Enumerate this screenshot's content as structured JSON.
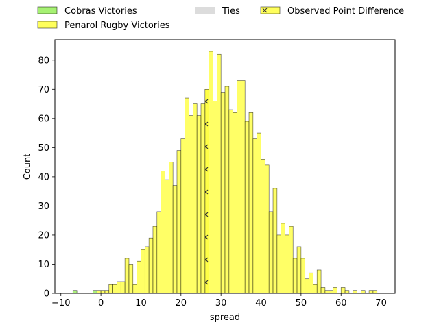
{
  "chart_data": {
    "type": "bar",
    "xlabel": "spread",
    "ylabel": "Count",
    "xlim": [
      -11.5,
      73.5
    ],
    "ylim": [
      0,
      87
    ],
    "x_ticks": [
      -10,
      0,
      10,
      20,
      30,
      40,
      50,
      60,
      70
    ],
    "x_tick_labels": [
      "−10",
      "0",
      "10",
      "20",
      "30",
      "40",
      "50",
      "60",
      "70"
    ],
    "y_ticks": [
      0,
      10,
      20,
      30,
      40,
      50,
      60,
      70,
      80
    ],
    "y_tick_labels": [
      "0",
      "10",
      "20",
      "30",
      "40",
      "50",
      "60",
      "70",
      "80"
    ],
    "bin_width": 1,
    "legend": {
      "placement": "top",
      "entries": [
        {
          "label": "Cobras Victories",
          "color": "#90ee50"
        },
        {
          "label": "Ties",
          "color": "#d3d3d3"
        },
        {
          "label": "Observed Point Difference",
          "color": "#ffff33",
          "hatch": "x"
        },
        {
          "label": "Penarol Rugby Victories",
          "color": "#ffff33"
        }
      ]
    },
    "series": [
      {
        "name": "Cobras Victories",
        "color": "#90ee50",
        "bins": [
          [
            -7,
            1
          ],
          [
            -2,
            1
          ]
        ]
      },
      {
        "name": "Ties",
        "color": "#d3d3d3",
        "bins": []
      },
      {
        "name": "Observed Point Difference",
        "color": "#ffff33",
        "hatch": "x",
        "bins": [
          [
            26,
            70
          ]
        ]
      },
      {
        "name": "Penarol Rugby Victories",
        "color": "#ffff33",
        "bins": [
          [
            -1,
            1
          ],
          [
            0,
            1
          ],
          [
            1,
            1
          ],
          [
            2,
            3
          ],
          [
            3,
            3
          ],
          [
            4,
            4
          ],
          [
            5,
            4
          ],
          [
            6,
            12
          ],
          [
            7,
            10
          ],
          [
            8,
            3
          ],
          [
            9,
            11
          ],
          [
            10,
            15
          ],
          [
            11,
            16
          ],
          [
            12,
            19
          ],
          [
            13,
            23
          ],
          [
            14,
            28
          ],
          [
            15,
            42
          ],
          [
            16,
            39
          ],
          [
            17,
            45
          ],
          [
            18,
            37
          ],
          [
            19,
            49
          ],
          [
            20,
            53
          ],
          [
            21,
            67
          ],
          [
            22,
            61
          ],
          [
            23,
            65
          ],
          [
            24,
            61
          ],
          [
            25,
            65
          ],
          [
            27,
            83
          ],
          [
            28,
            66
          ],
          [
            29,
            82
          ],
          [
            30,
            69
          ],
          [
            31,
            71
          ],
          [
            32,
            63
          ],
          [
            33,
            62
          ],
          [
            34,
            73
          ],
          [
            35,
            73
          ],
          [
            36,
            59
          ],
          [
            37,
            62
          ],
          [
            38,
            53
          ],
          [
            39,
            55
          ],
          [
            40,
            46
          ],
          [
            41,
            44
          ],
          [
            42,
            28
          ],
          [
            43,
            36
          ],
          [
            44,
            20
          ],
          [
            45,
            24
          ],
          [
            46,
            20
          ],
          [
            47,
            23
          ],
          [
            48,
            12
          ],
          [
            49,
            16
          ],
          [
            50,
            12
          ],
          [
            51,
            5
          ],
          [
            52,
            7
          ],
          [
            53,
            3
          ],
          [
            54,
            8
          ],
          [
            55,
            2
          ],
          [
            56,
            1
          ],
          [
            57,
            1
          ],
          [
            58,
            2
          ],
          [
            60,
            2
          ],
          [
            61,
            1
          ],
          [
            63,
            1
          ],
          [
            65,
            1
          ],
          [
            67,
            1
          ],
          [
            68,
            1
          ]
        ]
      }
    ]
  }
}
